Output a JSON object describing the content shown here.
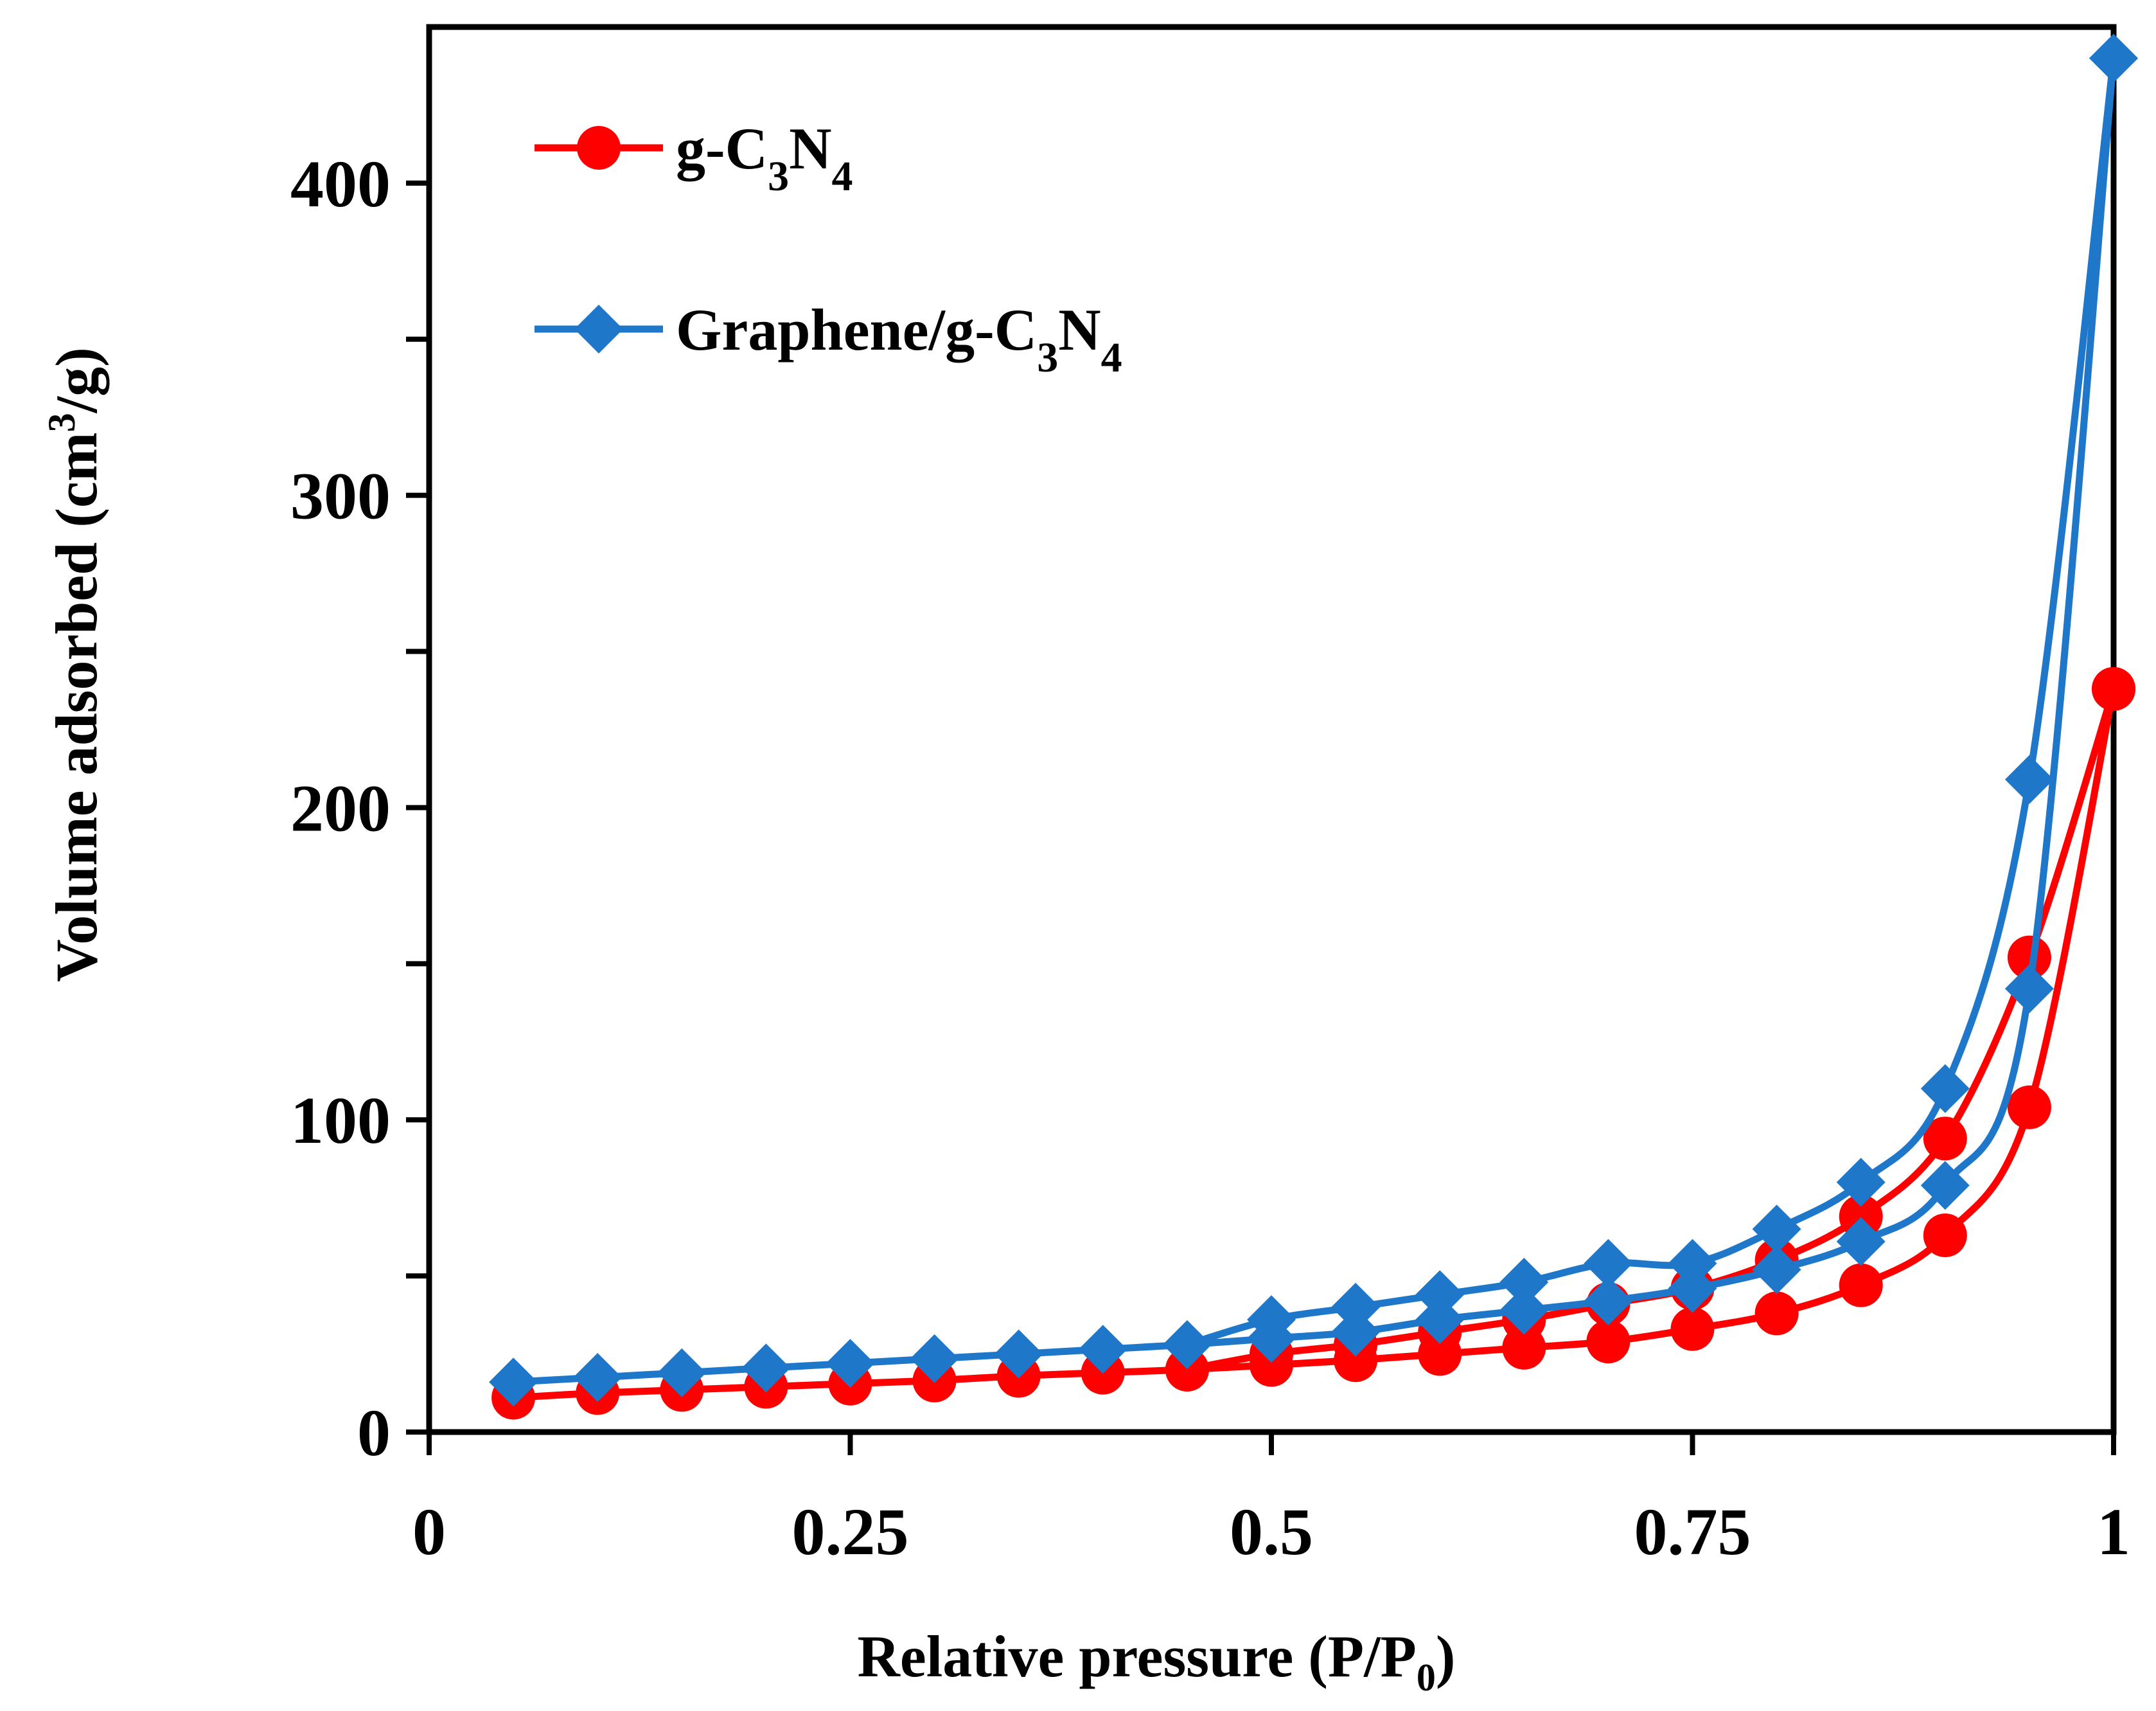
{
  "chart_data": {
    "type": "line",
    "title": "",
    "xlabel": {
      "main": "Relative pressure (P/P",
      "sub": "0",
      "end": ")"
    },
    "ylabel": {
      "main": "Volume adsorbed (cm",
      "sup": "3",
      "end": "/g)"
    },
    "xlim": [
      0,
      1
    ],
    "ylim": [
      0,
      450
    ],
    "xticks": [
      0,
      0.25,
      0.5,
      0.75,
      1
    ],
    "xtick_labels": [
      "0",
      "0.25",
      "0.5",
      "0.75",
      "1"
    ],
    "yticks": [
      0,
      100,
      200,
      300,
      400
    ],
    "ytick_labels": [
      "0",
      "100",
      "200",
      "300",
      "400"
    ],
    "y_minor_ticks": [
      50,
      150,
      250,
      350
    ],
    "grid": false,
    "legend_position": "top-left",
    "series": [
      {
        "name": "g-C3N4",
        "legend_label": {
          "a": "g-C",
          "s1": "3",
          "b": "N",
          "s2": "4"
        },
        "color": "#ff0000",
        "marker": "circle",
        "adsorption": {
          "x": [
            0.05,
            0.1,
            0.15,
            0.2,
            0.25,
            0.3,
            0.35,
            0.4,
            0.45,
            0.5,
            0.55,
            0.6,
            0.65,
            0.7,
            0.75,
            0.8,
            0.85,
            0.9,
            0.95,
            1.0
          ],
          "y": [
            11,
            12.5,
            13.5,
            14.5,
            15.5,
            16.5,
            18,
            19,
            20,
            21.5,
            23,
            25,
            27,
            29,
            33,
            38,
            47,
            63,
            104,
            238
          ]
        },
        "desorption": {
          "x": [
            1.0,
            0.95,
            0.9,
            0.85,
            0.8,
            0.75,
            0.7,
            0.65,
            0.6,
            0.55,
            0.5,
            0.45
          ],
          "y": [
            238,
            152,
            94,
            69,
            55,
            46,
            41,
            36,
            32,
            28,
            25,
            20
          ]
        }
      },
      {
        "name": "Graphene/g-C3N4",
        "legend_label": {
          "a": "Graphene/g-C",
          "s1": "3",
          "b": "N",
          "s2": "4"
        },
        "color": "#1f77c9",
        "marker": "diamond",
        "adsorption": {
          "x": [
            0.05,
            0.1,
            0.15,
            0.2,
            0.25,
            0.3,
            0.35,
            0.4,
            0.45,
            0.5,
            0.55,
            0.6,
            0.65,
            0.7,
            0.75,
            0.8,
            0.85,
            0.9,
            0.95,
            1.0
          ],
          "y": [
            16,
            17.5,
            19,
            20.5,
            22,
            23.5,
            25,
            26.5,
            28,
            30,
            32,
            36,
            39,
            42,
            46,
            52,
            61,
            79,
            142,
            440
          ]
        },
        "desorption": {
          "x": [
            1.0,
            0.95,
            0.9,
            0.85,
            0.8,
            0.75,
            0.7,
            0.65,
            0.6,
            0.55,
            0.5,
            0.45
          ],
          "y": [
            440,
            209,
            110,
            80,
            65,
            54,
            54,
            48,
            44,
            40,
            36,
            28
          ]
        }
      }
    ]
  }
}
